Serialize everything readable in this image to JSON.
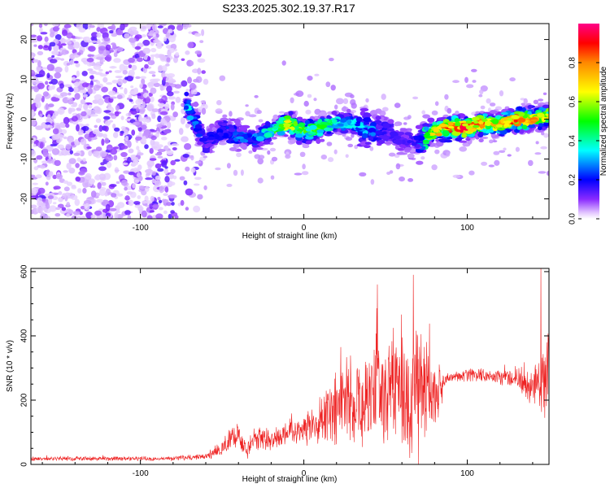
{
  "title": "S233.2025.302.19.37.R17",
  "chart_data": [
    {
      "type": "heatmap",
      "xlabel": "Height of straight line (km)",
      "ylabel": "Frequency (Hz)",
      "xlim": [
        -167,
        150
      ],
      "ylim": [
        -25,
        24
      ],
      "xticks": [
        -100,
        0,
        100
      ],
      "yticks": [
        20,
        10,
        0,
        -10,
        -20
      ],
      "xtick_labels": [
        "-100",
        "0",
        "100"
      ],
      "ytick_labels": [
        "20",
        "10",
        "0",
        "-10",
        "-20"
      ],
      "ridge": {
        "x": [
          -72,
          -60,
          -50,
          -40,
          -30,
          -20,
          -10,
          0,
          10,
          20,
          30,
          40,
          50,
          60,
          70,
          80,
          90,
          100,
          110,
          120,
          130,
          140,
          150
        ],
        "freq": [
          4,
          -6,
          -3,
          -4,
          -5,
          -3,
          -1,
          -3,
          -2,
          -1,
          -1,
          -3,
          -3,
          -5,
          -6,
          -3,
          -2,
          -2,
          -1,
          -1,
          0,
          0,
          1
        ],
        "amplitude": [
          0.35,
          0.2,
          0.2,
          0.28,
          0.3,
          0.45,
          0.7,
          0.55,
          0.5,
          0.4,
          0.35,
          0.3,
          0.18,
          0.15,
          0.2,
          0.75,
          0.85,
          0.95,
          0.8,
          0.7,
          0.85,
          0.8,
          0.6
        ]
      },
      "colorbar": {
        "label": "Normalized spectral amplitude",
        "range": [
          0,
          1
        ],
        "ticks": [
          0.0,
          0.2,
          0.4,
          0.6,
          0.8
        ],
        "tick_labels": [
          "0.0",
          "0.2",
          "0.4",
          "0.6",
          "0.8"
        ],
        "colors": [
          "#ffffff",
          "#7700ff",
          "#0000ff",
          "#00ffff",
          "#00ff00",
          "#ffff00",
          "#ff8800",
          "#ff0000",
          "#ff0088"
        ]
      }
    },
    {
      "type": "line",
      "xlabel": "Height of straight line (km)",
      "ylabel": "SNR (10 * v/v)",
      "xlim": [
        -167,
        150
      ],
      "ylim": [
        0,
        610
      ],
      "xticks": [
        -100,
        0,
        100
      ],
      "yticks": [
        0,
        200,
        400,
        600
      ],
      "xtick_labels": [
        "-100",
        "0",
        "100"
      ],
      "ytick_labels": [
        "0",
        "200",
        "400",
        "600"
      ],
      "color": "#ee2222",
      "envelope": {
        "x": [
          -167,
          -80,
          -60,
          -52,
          -45,
          -40,
          -35,
          -30,
          -20,
          -10,
          0,
          10,
          20,
          30,
          40,
          50,
          60,
          70,
          75,
          80,
          85,
          86,
          90,
          100,
          110,
          120,
          130,
          140,
          145,
          150
        ],
        "mean": [
          18,
          18,
          25,
          45,
          80,
          90,
          35,
          90,
          75,
          95,
          110,
          145,
          170,
          190,
          210,
          220,
          225,
          220,
          215,
          215,
          250,
          260,
          270,
          280,
          275,
          270,
          265,
          240,
          260,
          300
        ],
        "spread": [
          8,
          8,
          12,
          25,
          45,
          40,
          25,
          50,
          40,
          50,
          55,
          80,
          140,
          170,
          190,
          230,
          260,
          250,
          210,
          150,
          60,
          25,
          20,
          25,
          25,
          30,
          35,
          70,
          120,
          160
        ]
      },
      "peaks": [
        {
          "x": 67,
          "y": 590
        },
        {
          "x": 145,
          "y": 610
        },
        {
          "x": 45,
          "y": 560
        }
      ]
    }
  ]
}
